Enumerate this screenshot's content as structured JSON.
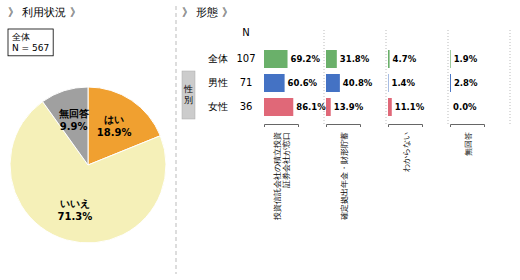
{
  "chart_data": [
    {
      "type": "pie",
      "title": "》 利用状況 》",
      "categories": [
        "はい",
        "いいえ",
        "無回答"
      ],
      "values": [
        18.9,
        71.3,
        9.9
      ],
      "value_labels": [
        "18.9%",
        "71.3%",
        "9.9%"
      ],
      "colors": [
        "#f0a030",
        "#f5f0b8",
        "#a0a0a0"
      ],
      "data_labels": true,
      "annotations": [
        "全体\nN = 567"
      ]
    },
    {
      "type": "bar",
      "orientation": "horizontal",
      "title": "》 形態 》",
      "categories": [
        "全体",
        "男性",
        "女性"
      ],
      "colors": [
        "#6ab06a",
        "#4472c4",
        "#e06878"
      ],
      "n": {
        "label": "N",
        "values": [
          107,
          71,
          36
        ]
      },
      "group": {
        "label": "性別",
        "categories": [
          "男性",
          "女性"
        ]
      },
      "series": [
        {
          "name": "投資信託会社の積立投資\n証券会社が窓口",
          "values": [
            69.2,
            60.6,
            86.1
          ],
          "value_labels": [
            "69.2%",
            "60.6%",
            "86.1%"
          ]
        },
        {
          "name": "確定拠出年金・財形貯蓄",
          "values": [
            31.8,
            40.8,
            13.9
          ],
          "value_labels": [
            "31.8%",
            "40.8%",
            "13.9%"
          ]
        },
        {
          "name": "わからない",
          "values": [
            4.7,
            1.4,
            11.1
          ],
          "value_labels": [
            "4.7%",
            "1.4%",
            "11.1%"
          ]
        },
        {
          "name": "無回答",
          "values": [
            1.9,
            2.8,
            0.0
          ],
          "value_labels": [
            "1.9%",
            "2.8%",
            "0.0%"
          ]
        }
      ],
      "xlim": [
        0,
        100
      ],
      "data_labels": true,
      "tick_labels": false,
      "grid": false
    }
  ]
}
